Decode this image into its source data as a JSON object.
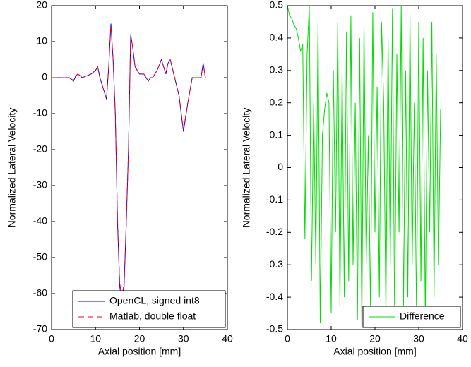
{
  "chart_data": [
    {
      "type": "line",
      "xlabel": "Axial position [mm]",
      "ylabel": "Normalized Lateral Velocity",
      "x": [
        0,
        2,
        4,
        5,
        5.5,
        6,
        7,
        8,
        9,
        10,
        10.5,
        11,
        12,
        12.5,
        13,
        13.5,
        14,
        14.5,
        15,
        15.5,
        16,
        16.5,
        17,
        17.5,
        18,
        18.5,
        19,
        20,
        21,
        22,
        22.5,
        23,
        24,
        25,
        26,
        26.5,
        27,
        28,
        29,
        30,
        31,
        32,
        33,
        34,
        34.5,
        35
      ],
      "series": [
        {
          "name": "OpenCL, signed int8",
          "color": "#0000ff",
          "linestyle": "solid",
          "values": [
            0,
            0,
            0,
            -1,
            0.5,
            1,
            0,
            0.5,
            1,
            2,
            3,
            0,
            -4,
            -6,
            3,
            15,
            5,
            -10,
            -40,
            -58,
            -62,
            -58,
            -40,
            -20,
            12,
            8,
            3,
            1,
            1,
            -1,
            0,
            0,
            2,
            5,
            1,
            4,
            5,
            0,
            -5,
            -15,
            -7,
            0,
            0,
            0,
            4,
            0
          ]
        },
        {
          "name": "Matlab, double float",
          "color": "#ff0000",
          "linestyle": "dashed",
          "values": [
            0,
            0,
            0,
            -0.8,
            0.6,
            1,
            0,
            0.5,
            1,
            2,
            3,
            0,
            -4,
            -6,
            3,
            14.5,
            5,
            -10,
            -39,
            -57,
            -61,
            -57,
            -41,
            -20,
            12,
            8,
            3,
            1,
            1,
            -1,
            0,
            0,
            2,
            5,
            1,
            4,
            5,
            0,
            -5,
            -14.5,
            -7,
            0,
            0,
            0,
            4,
            0
          ]
        }
      ],
      "xlim": [
        0,
        40
      ],
      "xticks": [
        0,
        10,
        20,
        30,
        40
      ],
      "ylim": [
        -70,
        20
      ],
      "yticks": [
        -70,
        -60,
        -50,
        -40,
        -30,
        -20,
        -10,
        0,
        10,
        20
      ],
      "legend": "lower right"
    },
    {
      "type": "line",
      "xlabel": "Axial position [mm]",
      "ylabel": "Normalized Lateral Velocity",
      "x": [
        0,
        0.5,
        1,
        1.5,
        2,
        2.5,
        3,
        3.5,
        4,
        4.5,
        5,
        5.5,
        6,
        6.5,
        7,
        7.5,
        8,
        8.5,
        9,
        9.5,
        10,
        10.5,
        11,
        11.5,
        12,
        12.5,
        13,
        13.5,
        14,
        14.5,
        15,
        15.5,
        16,
        16.5,
        17,
        17.5,
        18,
        18.5,
        19,
        19.5,
        20,
        20.5,
        21,
        21.5,
        22,
        22.5,
        23,
        23.5,
        24,
        24.5,
        25,
        25.5,
        26,
        26.5,
        27,
        27.5,
        28,
        28.5,
        29,
        29.5,
        30,
        30.5,
        31,
        31.5,
        32,
        32.5,
        33,
        33.5,
        34,
        34.5,
        35
      ],
      "series": [
        {
          "name": "Difference",
          "color": "#00dd00",
          "linestyle": "solid",
          "values": [
            0.5,
            0.47,
            0.46,
            0.44,
            0.43,
            0.4,
            0.36,
            0.38,
            -0.22,
            0.35,
            0.5,
            -0.35,
            0.2,
            -0.3,
            0.45,
            -0.48,
            0.1,
            0.18,
            0.23,
            0.2,
            -0.45,
            0.3,
            -0.2,
            0.45,
            -0.43,
            0.3,
            -0.4,
            0.42,
            -0.35,
            0.47,
            -0.3,
            0.2,
            -0.47,
            0.4,
            -0.49,
            0.45,
            -0.3,
            0.1,
            -0.45,
            0.48,
            -0.2,
            0.25,
            -0.4,
            0.45,
            0.2,
            -0.45,
            0.4,
            -0.3,
            0.49,
            -0.48,
            0.35,
            -0.2,
            0.5,
            -0.45,
            0.3,
            -0.4,
            0.47,
            -0.3,
            0.2,
            -0.46,
            0.45,
            -0.35,
            0.4,
            -0.47,
            0.3,
            -0.2,
            0.45,
            -0.4,
            0.35,
            -0.3,
            0.18
          ]
        }
      ],
      "xlim": [
        0,
        40
      ],
      "xticks": [
        0,
        10,
        20,
        30,
        40
      ],
      "ylim": [
        -0.5,
        0.5
      ],
      "yticks": [
        -0.5,
        -0.4,
        -0.3,
        -0.2,
        -0.1,
        0,
        0.1,
        0.2,
        0.3,
        0.4,
        0.5
      ],
      "legend": "lower right"
    }
  ]
}
